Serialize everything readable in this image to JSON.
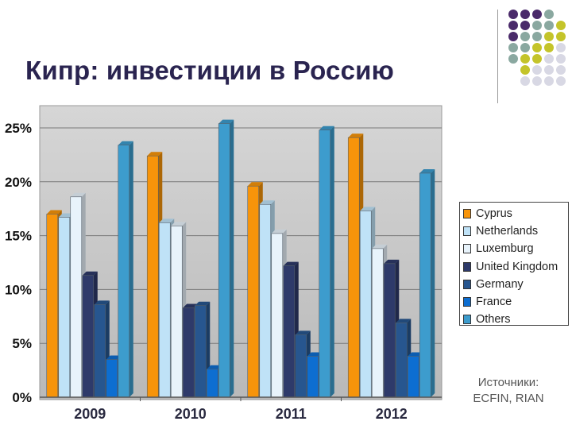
{
  "slide": {
    "title": "Кипр: инвестиции в Россию",
    "source_line1": "Источники:",
    "source_line2": "ECFIN, RIAN"
  },
  "chart_data": {
    "type": "bar",
    "title": "Кипр: инвестиции в Россию",
    "categories": [
      "2009",
      "2010",
      "2011",
      "2012"
    ],
    "ylim": [
      0,
      27.5
    ],
    "yticks": [
      "0%",
      "5%",
      "10%",
      "15%",
      "20%",
      "25%"
    ],
    "ytick_values": [
      0,
      5,
      10,
      15,
      20,
      25
    ],
    "grid": true,
    "legend_position": "right",
    "series": [
      {
        "name": "Cyprus",
        "color": "#f7940a",
        "values": [
          17.0,
          22.4,
          19.6,
          24.1
        ]
      },
      {
        "name": "Netherlands",
        "color": "#bfe2f7",
        "values": [
          16.7,
          16.2,
          17.9,
          17.3
        ]
      },
      {
        "name": "Luxemburg",
        "color": "#e8f3fb",
        "values": [
          18.6,
          15.9,
          15.2,
          13.8
        ]
      },
      {
        "name": "United Kingdom",
        "color": "#2e3a6a",
        "values": [
          11.3,
          8.3,
          12.2,
          12.4
        ]
      },
      {
        "name": "Germany",
        "color": "#27568f",
        "values": [
          8.6,
          8.5,
          5.8,
          6.9
        ]
      },
      {
        "name": "France",
        "color": "#0d6ed1",
        "values": [
          3.5,
          2.6,
          3.8,
          3.8
        ]
      },
      {
        "name": "Others",
        "color": "#3d9ccd",
        "values": [
          23.4,
          25.4,
          24.8,
          20.8
        ]
      }
    ]
  }
}
